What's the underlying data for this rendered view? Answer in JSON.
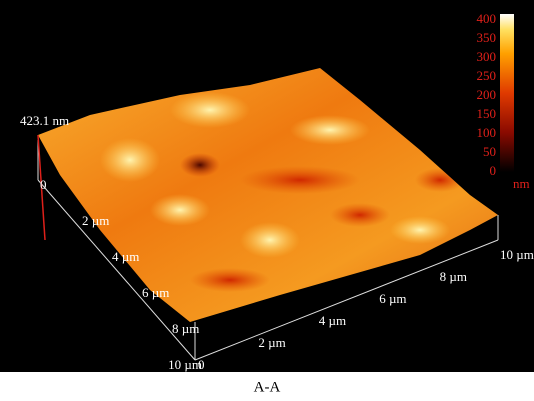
{
  "height_label": "423.1 nm",
  "colorbar": {
    "ticks": [
      0,
      50,
      100,
      150,
      200,
      250,
      300,
      350,
      400
    ],
    "unit": "nm"
  },
  "left_axis": {
    "labels": [
      "0",
      "2 µm",
      "4 µm",
      "6 µm",
      "8 µm",
      "10 µm"
    ]
  },
  "right_axis": {
    "labels": [
      "0",
      "2 µm",
      "4 µm",
      "6 µm",
      "8 µm",
      "10 µm"
    ]
  },
  "caption": "A-A"
}
